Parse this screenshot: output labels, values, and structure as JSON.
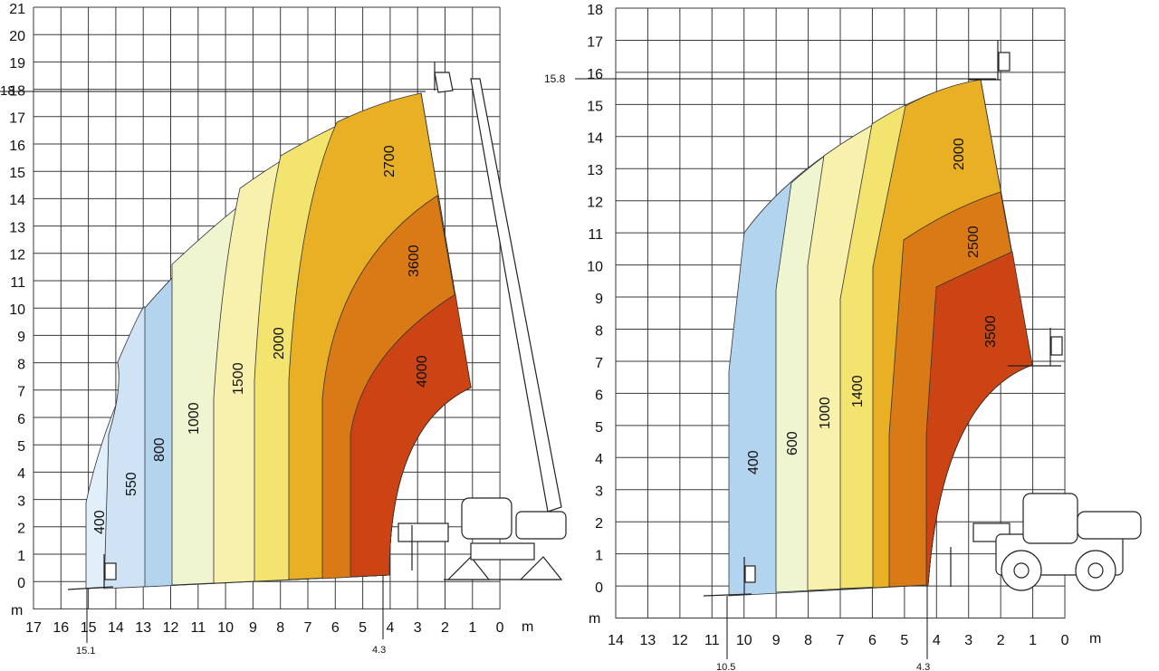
{
  "diagrams": [
    {
      "name": "load-chart-left",
      "unit_label": "m",
      "x_ticks": [
        "17",
        "16",
        "15",
        "14",
        "13",
        "12",
        "11",
        "10",
        "9",
        "8",
        "7",
        "6",
        "5",
        "4",
        "3",
        "2",
        "1",
        "0"
      ],
      "y_ticks": [
        "0",
        "1",
        "2",
        "3",
        "4",
        "5",
        "6",
        "7",
        "8",
        "9",
        "10",
        "11",
        "12",
        "13",
        "14",
        "15",
        "16",
        "17",
        "18",
        "19",
        "20",
        "21"
      ],
      "max_height_label": "18",
      "max_reach_label": "15.1",
      "min_reach_label": "4.3",
      "zones": [
        {
          "label": "400",
          "color": "#e1effa"
        },
        {
          "label": "550",
          "color": "#cfe3f4"
        },
        {
          "label": "800",
          "color": "#b3d4ee"
        },
        {
          "label": "1000",
          "color": "#eef5cf"
        },
        {
          "label": "1500",
          "color": "#f8f0ad"
        },
        {
          "label": "2000",
          "color": "#f3e36f"
        },
        {
          "label": "2700",
          "color": "#e9b026"
        },
        {
          "label": "3600",
          "color": "#d97a16"
        },
        {
          "label": "4000",
          "color": "#cc4414"
        }
      ]
    },
    {
      "name": "load-chart-right",
      "unit_label": "m",
      "x_ticks": [
        "14",
        "13",
        "12",
        "11",
        "10",
        "9",
        "8",
        "7",
        "6",
        "5",
        "4",
        "3",
        "2",
        "1",
        "0"
      ],
      "y_ticks": [
        "0",
        "1",
        "2",
        "3",
        "4",
        "5",
        "6",
        "7",
        "8",
        "9",
        "10",
        "11",
        "12",
        "13",
        "14",
        "15",
        "16",
        "17",
        "18"
      ],
      "max_height_label": "15.8",
      "max_reach_label": "10.5",
      "min_reach_label": "4.3",
      "zones": [
        {
          "label": "400",
          "color": "#b3d4ee"
        },
        {
          "label": "600",
          "color": "#eef5cf"
        },
        {
          "label": "1000",
          "color": "#f8f0ad"
        },
        {
          "label": "1400",
          "color": "#f3e36f"
        },
        {
          "label": "2000",
          "color": "#e9b026"
        },
        {
          "label": "2500",
          "color": "#d97a16"
        },
        {
          "label": "3500",
          "color": "#cc4414"
        }
      ]
    }
  ]
}
